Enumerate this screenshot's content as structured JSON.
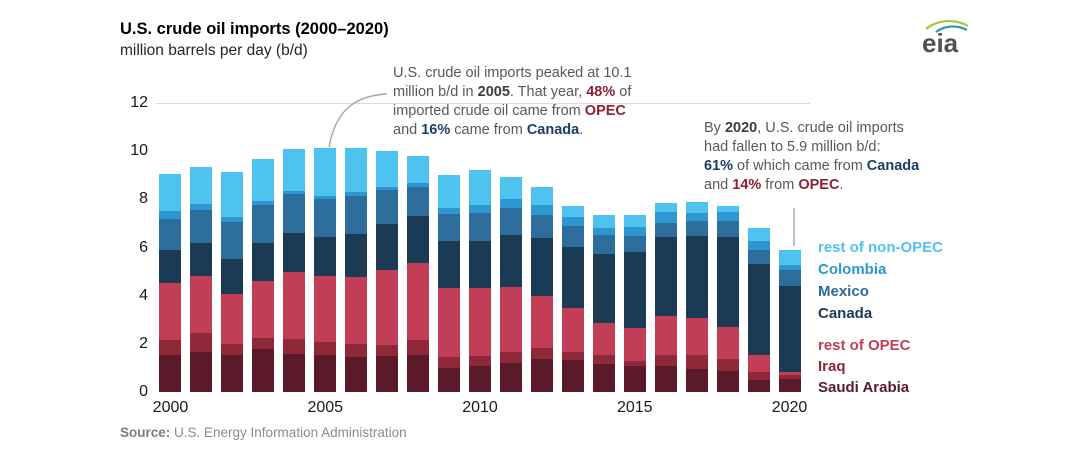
{
  "title": "U.S. crude oil imports (2000–2020)",
  "subtitle": "million barrels per day (b/d)",
  "logo_text": "eia",
  "source": {
    "label": "Source:",
    "text": " U.S. Energy Information Administration"
  },
  "notes": {
    "peak": {
      "lines": [
        [
          {
            "t": "U.S. crude oil imports peaked at 10.1"
          }
        ],
        [
          {
            "t": "million b/d in "
          },
          {
            "t": "2005",
            "s": "b"
          },
          {
            "t": ". That year, "
          },
          {
            "t": "48%",
            "s": "opec"
          },
          {
            "t": " of"
          }
        ],
        [
          {
            "t": "imported crude oil came from "
          },
          {
            "t": "OPEC",
            "s": "opec"
          }
        ],
        [
          {
            "t": "and "
          },
          {
            "t": "16%",
            "s": "navy"
          },
          {
            "t": " came from "
          },
          {
            "t": "Canada",
            "s": "navy"
          },
          {
            "t": "."
          }
        ]
      ]
    },
    "fall": {
      "lines": [
        [
          {
            "t": "By "
          },
          {
            "t": "2020",
            "s": "b"
          },
          {
            "t": ", U.S. crude oil imports"
          }
        ],
        [
          {
            "t": "had fallen to 5.9 million b/d:"
          }
        ],
        [
          {
            "t": "61%",
            "s": "navy"
          },
          {
            "t": " of which came from "
          },
          {
            "t": "Canada",
            "s": "navy"
          }
        ],
        [
          {
            "t": "and "
          },
          {
            "t": "14%",
            "s": "opec"
          },
          {
            "t": " from "
          },
          {
            "t": "OPEC",
            "s": "opec"
          },
          {
            "t": "."
          }
        ]
      ]
    }
  },
  "chart_data": {
    "type": "bar",
    "stacked": true,
    "title": "U.S. crude oil imports (2000–2020)",
    "ylabel": "million barrels per day (b/d)",
    "xlabel": "",
    "ylim": [
      0,
      12
    ],
    "y_ticks": [
      0,
      2,
      4,
      6,
      8,
      10,
      12
    ],
    "grid": "top line at 12 only",
    "legend_position": "right",
    "categories": [
      2000,
      2001,
      2002,
      2003,
      2004,
      2005,
      2006,
      2007,
      2008,
      2009,
      2010,
      2011,
      2012,
      2013,
      2014,
      2015,
      2016,
      2017,
      2018,
      2019,
      2020
    ],
    "x_ticks": [
      {
        "label": "2000",
        "index": 0
      },
      {
        "label": "2005",
        "index": 5
      },
      {
        "label": "2010",
        "index": 10
      },
      {
        "label": "2015",
        "index": 15
      },
      {
        "label": "2020",
        "index": 20
      }
    ],
    "series": [
      {
        "name": "Saudi Arabia",
        "color": "#5a1a29",
        "values": [
          1.52,
          1.66,
          1.55,
          1.77,
          1.56,
          1.54,
          1.46,
          1.48,
          1.53,
          1.0,
          1.1,
          1.19,
          1.36,
          1.33,
          1.17,
          1.06,
          1.1,
          0.94,
          0.86,
          0.5,
          0.52
        ]
      },
      {
        "name": "Iraq",
        "color": "#8f2838",
        "values": [
          0.62,
          0.8,
          0.44,
          0.48,
          0.66,
          0.53,
          0.55,
          0.48,
          0.63,
          0.45,
          0.41,
          0.46,
          0.47,
          0.34,
          0.37,
          0.23,
          0.42,
          0.6,
          0.51,
          0.34,
          0.18
        ]
      },
      {
        "name": "rest of OPEC",
        "color": "#c23e56",
        "values": [
          2.39,
          2.35,
          2.1,
          2.38,
          2.78,
          2.75,
          2.77,
          3.12,
          3.2,
          2.89,
          2.8,
          2.7,
          2.14,
          1.8,
          1.31,
          1.35,
          1.64,
          1.53,
          1.34,
          0.68,
          0.14
        ]
      },
      {
        "name": "Canada",
        "color": "#1b3a54",
        "values": [
          1.35,
          1.36,
          1.45,
          1.55,
          1.62,
          1.63,
          1.8,
          1.89,
          1.96,
          1.94,
          1.97,
          2.19,
          2.41,
          2.57,
          2.88,
          3.17,
          3.29,
          3.42,
          3.72,
          3.79,
          3.58
        ]
      },
      {
        "name": "Mexico",
        "color": "#2c6d9c",
        "values": [
          1.31,
          1.39,
          1.5,
          1.57,
          1.6,
          1.56,
          1.57,
          1.41,
          1.19,
          1.1,
          1.14,
          1.1,
          0.97,
          0.85,
          0.78,
          0.69,
          0.59,
          0.61,
          0.67,
          0.6,
          0.66
        ]
      },
      {
        "name": "Colombia",
        "color": "#2e96d1",
        "values": [
          0.32,
          0.26,
          0.23,
          0.17,
          0.14,
          0.15,
          0.15,
          0.14,
          0.18,
          0.25,
          0.34,
          0.36,
          0.41,
          0.37,
          0.3,
          0.37,
          0.43,
          0.33,
          0.36,
          0.37,
          0.2
        ]
      },
      {
        "name": "rest of non-OPEC",
        "color": "#4fc3f0",
        "values": [
          1.56,
          1.51,
          1.87,
          1.75,
          1.73,
          1.97,
          1.82,
          1.51,
          1.09,
          1.38,
          1.45,
          0.94,
          0.77,
          0.47,
          0.53,
          0.48,
          0.38,
          0.48,
          0.25,
          0.52,
          0.6
        ]
      }
    ],
    "legend_order_top_to_bottom": [
      "rest of non-OPEC",
      "Colombia",
      "Mexico",
      "Canada",
      "rest of OPEC",
      "Iraq",
      "Saudi Arabia"
    ],
    "annotations": [
      "U.S. crude oil imports peaked at 10.1 million b/d in 2005. That year, 48% of imported crude oil came from OPEC and 16% came from Canada.",
      "By 2020, U.S. crude oil imports had fallen to 5.9 million b/d: 61% of which came from Canada and 14% from OPEC."
    ]
  }
}
